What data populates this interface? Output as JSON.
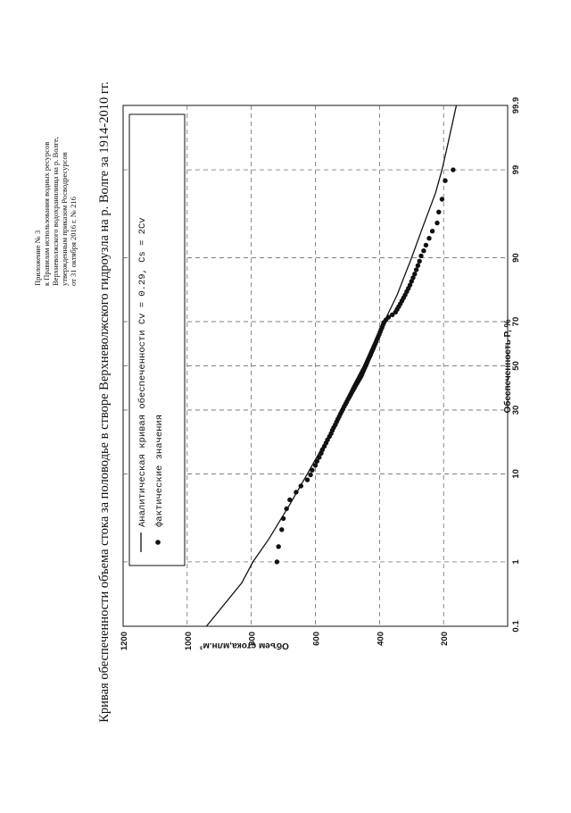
{
  "appendix": {
    "lines": [
      "Приложение № 3",
      "к Правилам использования водных ресурсов",
      "Верхневолжского водохранилища на р. Волге,",
      "утвержденным приказом Росводресурсов",
      "от 31 октября 2016 г. № 216"
    ]
  },
  "chart_data": {
    "type": "scatter",
    "title": "Кривая обеспеченности объема стока за половодье в створе Верхневолжского гидроузла на р. Волге за 1914-2010 гг.",
    "xlabel": "Обеспеченность P, %",
    "ylabel": "Объем стока,млн.м³",
    "x_scale": "probability",
    "x_ticks": [
      "0.1",
      "1",
      "10",
      "30",
      "50",
      "70",
      "90",
      "99",
      "99.9"
    ],
    "y_ticks": [
      "200",
      "400",
      "600",
      "800",
      "1000",
      "1200"
    ],
    "ylim": [
      0,
      1200
    ],
    "xlim": [
      0.1,
      99.9
    ],
    "grid": true,
    "legend_position": "top-left",
    "series": [
      {
        "name": "Аналитическая кривая обеспеченности Cv = 0.29, Cs = 2Cv",
        "kind": "line",
        "x": [
          0.1,
          0.5,
          1,
          2,
          5,
          10,
          20,
          30,
          40,
          50,
          60,
          70,
          80,
          90,
          95,
          98,
          99,
          99.5,
          99.9
        ],
        "y": [
          940,
          830,
          795,
          745,
          680,
          625,
          560,
          520,
          485,
          450,
          420,
          385,
          345,
          300,
          265,
          225,
          205,
          190,
          160
        ]
      },
      {
        "name": "фактические значения",
        "kind": "points",
        "x": [
          1,
          1.6,
          2.6,
          3.5,
          4.5,
          5.6,
          6.7,
          7.7,
          8.8,
          9.8,
          10.8,
          11.9,
          12.9,
          13.9,
          15,
          16,
          17,
          18,
          19,
          20.1,
          21.1,
          22.2,
          23.2,
          24.2,
          25.3,
          26.3,
          27.3,
          28.4,
          29.4,
          30.4,
          31.5,
          32.5,
          33.5,
          34.6,
          35.6,
          36.6,
          37.7,
          38.7,
          39.7,
          40.8,
          41.8,
          42.8,
          43.9,
          44.9,
          45.9,
          47,
          48,
          49,
          50.1,
          51.1,
          52.1,
          53.2,
          54.2,
          55.2,
          56.3,
          57.3,
          58.3,
          59.4,
          60.4,
          61.4,
          62.5,
          63.5,
          64.5,
          65.6,
          66.6,
          67.6,
          68.7,
          69.7,
          70.7,
          71.8,
          72.8,
          73.8,
          74.9,
          75.9,
          76.9,
          78,
          79,
          80,
          81.1,
          82.1,
          83.1,
          84.2,
          85.2,
          86.2,
          87.3,
          88.3,
          89.3,
          90.4,
          91.4,
          92.4,
          93.5,
          94.5,
          95.5,
          96.6,
          97.6,
          98.6,
          99
        ],
        "y": [
          720,
          715,
          705,
          700,
          690,
          680,
          660,
          645,
          625,
          615,
          610,
          600,
          595,
          588,
          582,
          578,
          572,
          567,
          562,
          556,
          551,
          547,
          543,
          538,
          534,
          530,
          526,
          522,
          518,
          514,
          510,
          506,
          502,
          498,
          494,
          490,
          486,
          482,
          478,
          474,
          470,
          466,
          462,
          458,
          455,
          452,
          449,
          446,
          443,
          440,
          437,
          434,
          431,
          428,
          425,
          422,
          419,
          416,
          413,
          410,
          407,
          404,
          401,
          398,
          395,
          392,
          389,
          386,
          380,
          372,
          360,
          350,
          345,
          340,
          335,
          330,
          325,
          320,
          315,
          310,
          305,
          300,
          295,
          290,
          285,
          280,
          275,
          270,
          262,
          255,
          245,
          235,
          220,
          215,
          205,
          195,
          170
        ]
      }
    ]
  }
}
